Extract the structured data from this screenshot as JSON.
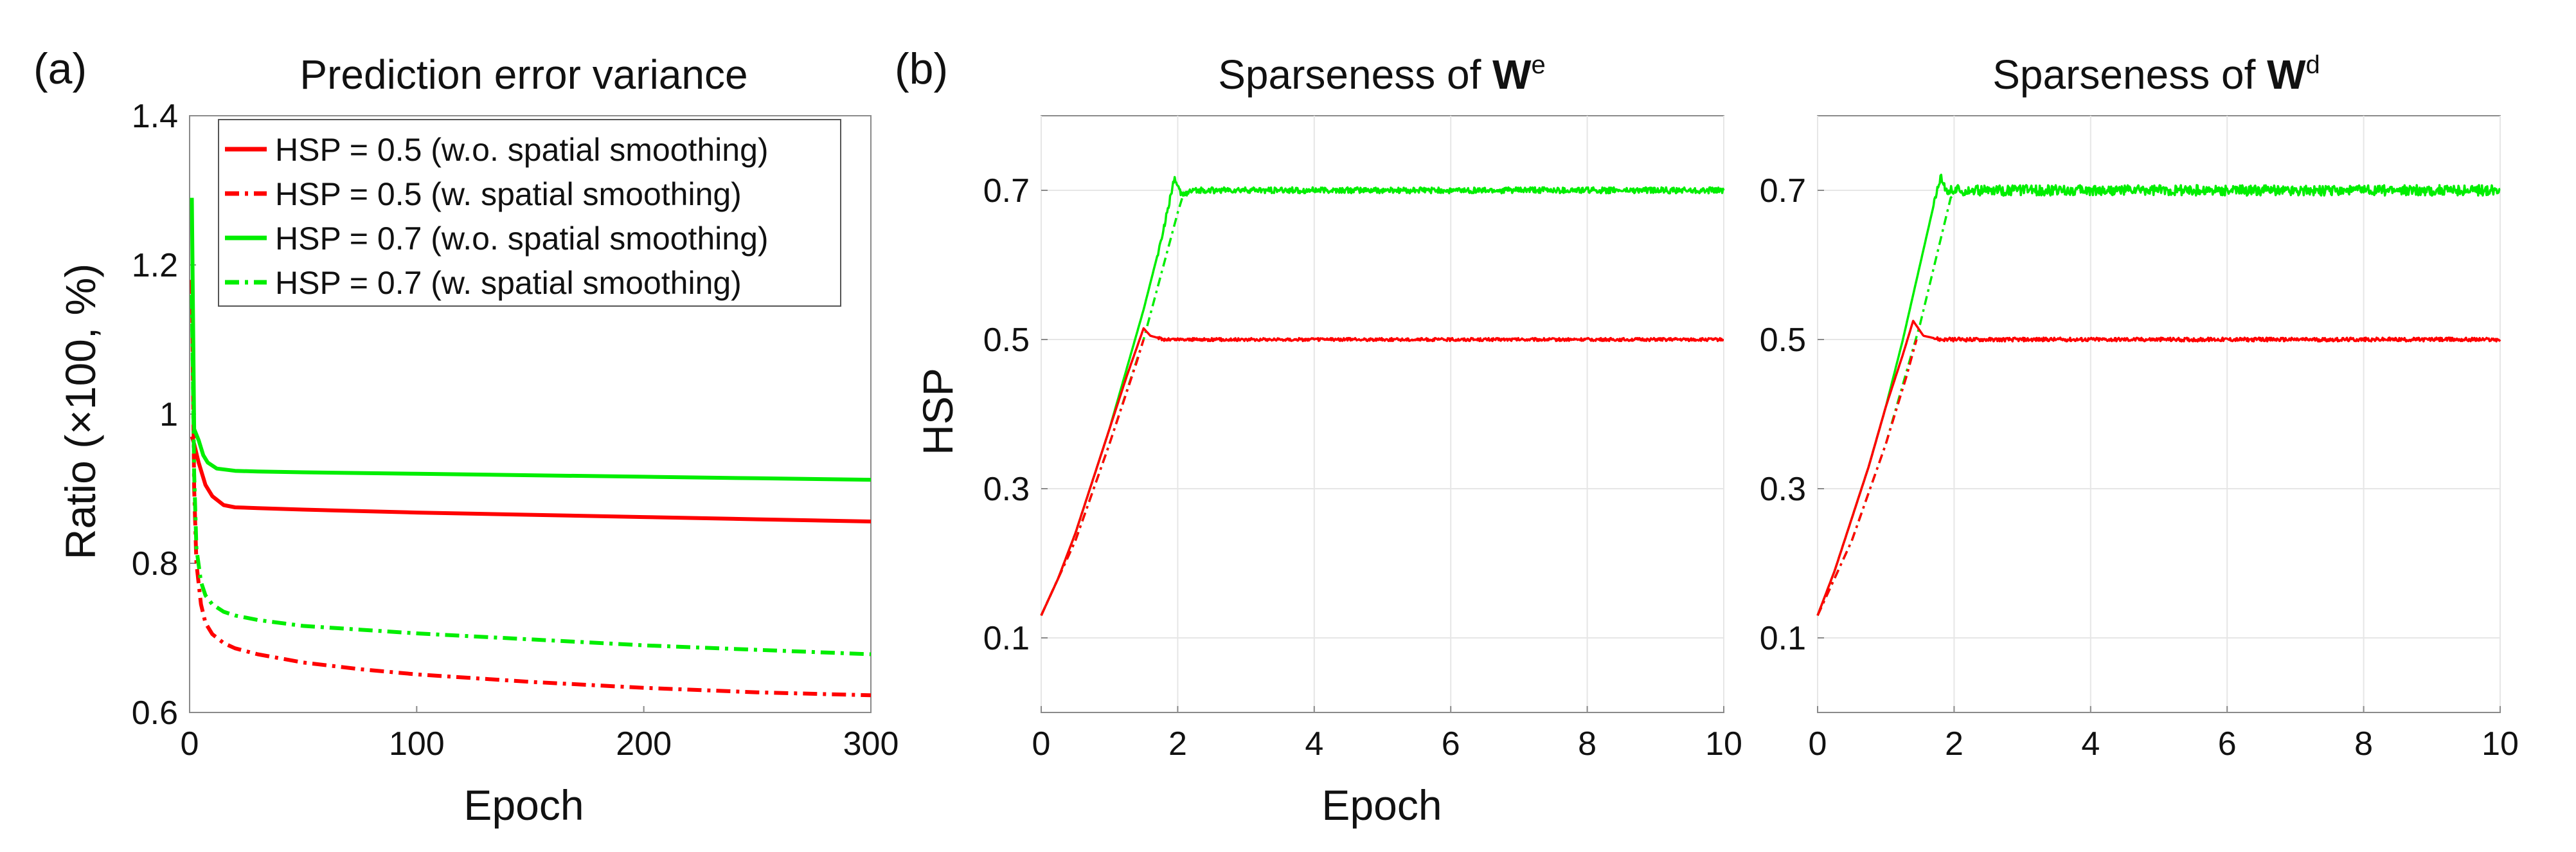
{
  "chart_data": [
    {
      "type": "line",
      "panel_label": "(a)",
      "title": "Prediction error variance",
      "xlabel": "Epoch",
      "ylabel": "Ratio (×100, %)",
      "xlim": [
        0,
        300
      ],
      "ylim": [
        0.6,
        1.4
      ],
      "xticks": [
        0,
        100,
        200,
        300
      ],
      "yticks": [
        0.6,
        0.8,
        1,
        1.2,
        1.4
      ],
      "grid": false,
      "legend": "top-right",
      "series": [
        {
          "name": "HSP = 0.5 (w.o. spatial smoothing)",
          "color": "#ff0000",
          "dash": "solid",
          "x": [
            1,
            2,
            4,
            7,
            10,
            15,
            20,
            30,
            50,
            100,
            150,
            200,
            250,
            300
          ],
          "y": [
            0.97,
            0.96,
            0.935,
            0.905,
            0.89,
            0.878,
            0.875,
            0.874,
            0.872,
            0.868,
            0.865,
            0.862,
            0.859,
            0.856
          ]
        },
        {
          "name": "HSP = 0.5 (w. spatial smoothing)",
          "color": "#ff0000",
          "dash": "dashdot",
          "x": [
            1,
            2,
            3,
            5,
            7,
            10,
            15,
            20,
            30,
            50,
            75,
            100,
            150,
            200,
            250,
            300
          ],
          "y": [
            1.18,
            0.9,
            0.8,
            0.745,
            0.72,
            0.705,
            0.693,
            0.686,
            0.678,
            0.667,
            0.658,
            0.651,
            0.641,
            0.633,
            0.627,
            0.623
          ]
        },
        {
          "name": "HSP = 0.7 (w.o. spatial smoothing)",
          "color": "#00ee00",
          "dash": "solid",
          "x": [
            1,
            2,
            4,
            6,
            8,
            12,
            20,
            30,
            50,
            100,
            150,
            200,
            250,
            300
          ],
          "y": [
            1.29,
            0.98,
            0.965,
            0.945,
            0.935,
            0.927,
            0.924,
            0.923,
            0.922,
            0.92,
            0.918,
            0.916,
            0.914,
            0.912
          ]
        },
        {
          "name": "HSP = 0.7 (w. spatial smoothing)",
          "color": "#00ee00",
          "dash": "dashdot",
          "x": [
            1,
            2,
            3,
            5,
            7,
            10,
            15,
            20,
            30,
            50,
            75,
            100,
            150,
            200,
            250,
            300
          ],
          "y": [
            1.16,
            0.92,
            0.82,
            0.775,
            0.757,
            0.745,
            0.735,
            0.73,
            0.724,
            0.716,
            0.711,
            0.706,
            0.698,
            0.69,
            0.684,
            0.678
          ]
        }
      ]
    },
    {
      "type": "line",
      "panel_label": "(b)",
      "title": "Sparseness of ",
      "title_bold": "W",
      "title_sup": "e",
      "xlabel": "Epoch",
      "ylabel": "HSP",
      "xlim": [
        0,
        10
      ],
      "ylim": [
        0,
        0.8
      ],
      "xticks": [
        0,
        2,
        4,
        6,
        8,
        10
      ],
      "yticks": [
        0.1,
        0.3,
        0.5,
        0.7
      ],
      "grid": true,
      "series": [
        {
          "color": "#00ee00",
          "dash": "solid",
          "noise": 0.004,
          "x": [
            0,
            0.25,
            0.5,
            0.75,
            1.0,
            1.25,
            1.5,
            1.75,
            1.95,
            2.05,
            2.3,
            10
          ],
          "y": [
            0.13,
            0.18,
            0.24,
            0.31,
            0.38,
            0.46,
            0.54,
            0.63,
            0.715,
            0.695,
            0.7,
            0.7
          ]
        },
        {
          "color": "#00ee00",
          "dash": "dashdot",
          "x": [
            0,
            0.5,
            1.0,
            1.5,
            2.0,
            2.1
          ],
          "y": [
            0.13,
            0.23,
            0.36,
            0.5,
            0.67,
            0.7
          ]
        },
        {
          "color": "#ff0000",
          "dash": "solid",
          "noise": 0.002,
          "x": [
            0,
            0.25,
            0.5,
            0.75,
            1.0,
            1.25,
            1.5,
            1.6,
            1.8,
            2.2,
            10
          ],
          "y": [
            0.13,
            0.18,
            0.24,
            0.31,
            0.38,
            0.45,
            0.515,
            0.505,
            0.5,
            0.5,
            0.5
          ]
        },
        {
          "color": "#ff0000",
          "dash": "dashdot",
          "x": [
            0,
            0.5,
            1.0,
            1.4,
            1.5
          ],
          "y": [
            0.13,
            0.23,
            0.36,
            0.47,
            0.5
          ]
        }
      ]
    },
    {
      "type": "line",
      "title": "Sparseness of ",
      "title_bold": "W",
      "title_sup": "d",
      "xlabel": "",
      "ylabel": "",
      "xlim": [
        0,
        10
      ],
      "ylim": [
        0,
        0.8
      ],
      "xticks": [
        0,
        2,
        4,
        6,
        8,
        10
      ],
      "yticks": [
        0.1,
        0.3,
        0.5,
        0.7
      ],
      "grid": true,
      "series": [
        {
          "color": "#00ee00",
          "dash": "solid",
          "noise": 0.007,
          "x": [
            0,
            0.25,
            0.5,
            0.75,
            1.0,
            1.25,
            1.5,
            1.65,
            1.8,
            1.9,
            2.4,
            3.0,
            10
          ],
          "y": [
            0.13,
            0.19,
            0.26,
            0.33,
            0.41,
            0.5,
            0.6,
            0.66,
            0.72,
            0.7,
            0.7,
            0.7,
            0.7
          ]
        },
        {
          "color": "#00ee00",
          "dash": "dashdot",
          "x": [
            0,
            0.5,
            1.0,
            1.5,
            1.95,
            2.05
          ],
          "y": [
            0.13,
            0.23,
            0.36,
            0.52,
            0.69,
            0.7
          ]
        },
        {
          "color": "#ff0000",
          "dash": "solid",
          "noise": 0.0025,
          "x": [
            0,
            0.25,
            0.5,
            0.75,
            1.0,
            1.25,
            1.4,
            1.55,
            1.8,
            10
          ],
          "y": [
            0.13,
            0.19,
            0.26,
            0.33,
            0.41,
            0.48,
            0.525,
            0.505,
            0.5,
            0.5
          ]
        },
        {
          "color": "#ff0000",
          "dash": "dashdot",
          "x": [
            0,
            0.5,
            1.0,
            1.3,
            1.45
          ],
          "y": [
            0.13,
            0.23,
            0.36,
            0.45,
            0.5
          ]
        }
      ]
    }
  ]
}
